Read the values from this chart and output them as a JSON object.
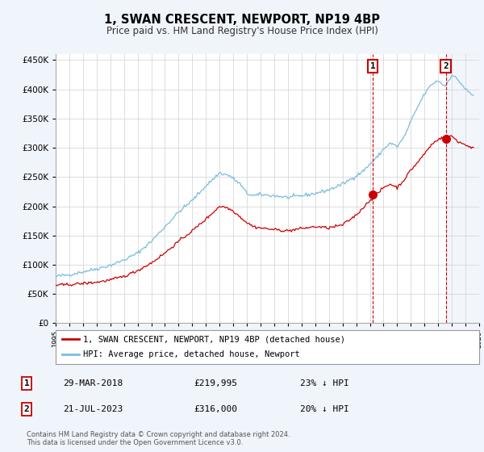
{
  "title": "1, SWAN CRESCENT, NEWPORT, NP19 4BP",
  "subtitle": "Price paid vs. HM Land Registry's House Price Index (HPI)",
  "hpi_label": "HPI: Average price, detached house, Newport",
  "price_label": "1, SWAN CRESCENT, NEWPORT, NP19 4BP (detached house)",
  "footnote": "Contains HM Land Registry data © Crown copyright and database right 2024.\nThis data is licensed under the Open Government Licence v3.0.",
  "sale1_label": "29-MAR-2018",
  "sale1_price": "£219,995",
  "sale1_hpi": "23% ↓ HPI",
  "sale2_label": "21-JUL-2023",
  "sale2_price": "£316,000",
  "sale2_hpi": "20% ↓ HPI",
  "hpi_color": "#7abce0",
  "price_color": "#cc0000",
  "sale_marker_color": "#cc0000",
  "vline_color": "#cc0000",
  "background_color": "#f0f4fb",
  "plot_bg_color": "#ffffff",
  "ylim": [
    0,
    460000
  ],
  "yticks": [
    0,
    50000,
    100000,
    150000,
    200000,
    250000,
    300000,
    350000,
    400000,
    450000
  ],
  "xlim_start": 1995.0,
  "xlim_end": 2026.0,
  "sale1_x": 2018.22,
  "sale2_x": 2023.55,
  "sale1_y": 219995,
  "sale2_y": 316000
}
